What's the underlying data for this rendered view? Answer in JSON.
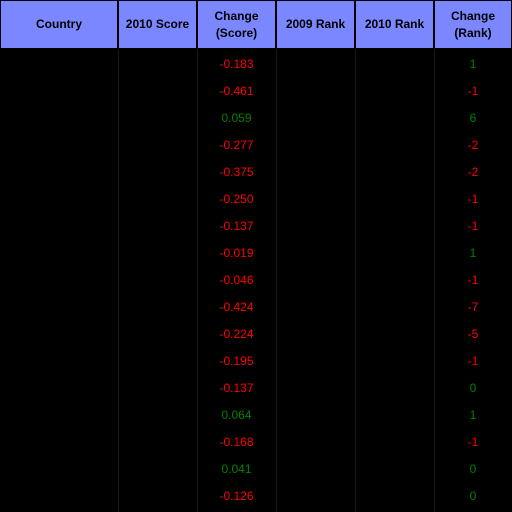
{
  "headers": {
    "country": "Country",
    "score_2010": "2010 Score",
    "change_score": "Change\n(Score)",
    "rank_2009": "2009 Rank",
    "rank_2010": "2010 Rank",
    "change_rank": "Change\n(Rank)"
  },
  "colors": {
    "header_bg": "#7a87ff",
    "negative": "#ff0000",
    "positive": "#008000",
    "background": "#000000"
  },
  "rows": [
    {
      "change_score": "-0.183",
      "change_rank": "1"
    },
    {
      "change_score": "-0.461",
      "change_rank": "-1"
    },
    {
      "change_score": "0.059",
      "change_rank": "6"
    },
    {
      "change_score": "-0.277",
      "change_rank": "-2"
    },
    {
      "change_score": "-0.375",
      "change_rank": "-2"
    },
    {
      "change_score": "-0.250",
      "change_rank": "-1"
    },
    {
      "change_score": "-0.137",
      "change_rank": "-1"
    },
    {
      "change_score": "-0.019",
      "change_rank": "1"
    },
    {
      "change_score": "-0.046",
      "change_rank": "-1"
    },
    {
      "change_score": "-0.424",
      "change_rank": "-7"
    },
    {
      "change_score": "-0.224",
      "change_rank": "-5"
    },
    {
      "change_score": "-0.195",
      "change_rank": "-1"
    },
    {
      "change_score": "-0.137",
      "change_rank": "0"
    },
    {
      "change_score": "0.064",
      "change_rank": "1"
    },
    {
      "change_score": "-0.168",
      "change_rank": "-1"
    },
    {
      "change_score": "0.041",
      "change_rank": "0"
    },
    {
      "change_score": "-0.126",
      "change_rank": "0"
    }
  ]
}
